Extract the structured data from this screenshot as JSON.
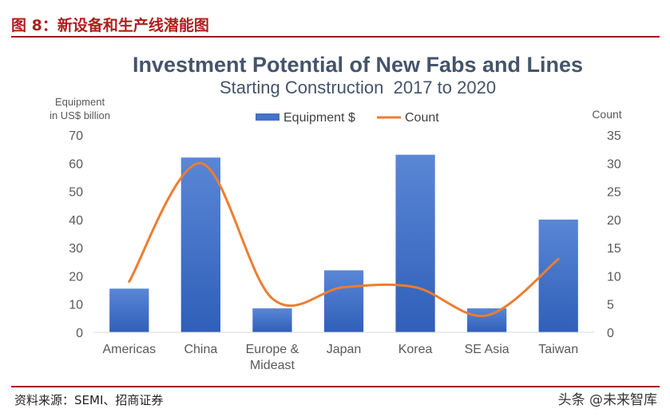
{
  "figure": {
    "caption": "图 8：新设备和生产线潜能图",
    "source": "资料来源：SEMI、招商证券",
    "watermark": "头条 @未来智库"
  },
  "chart_data": {
    "type": "bar",
    "title": "Investment Potential of New Fabs and Lines",
    "subtitle": "Starting Construction  2017 to 2020",
    "categories": [
      "Americas",
      "China",
      "Europe & Mideast",
      "Japan",
      "Korea",
      "SE Asia",
      "Taiwan"
    ],
    "category_labels": [
      [
        "Americas"
      ],
      [
        "China"
      ],
      [
        "Europe &",
        "Mideast"
      ],
      [
        "Japan"
      ],
      [
        "Korea"
      ],
      [
        "SE Asia"
      ],
      [
        "Taiwan"
      ]
    ],
    "ylabel_left": [
      "Equipment",
      "in US$ billion"
    ],
    "ylabel_right": "Count",
    "ylim_left": [
      0,
      70
    ],
    "yticks_left": [
      0,
      10,
      20,
      30,
      40,
      50,
      60,
      70
    ],
    "ylim_right": [
      0,
      35
    ],
    "yticks_right": [
      0,
      5,
      10,
      15,
      20,
      25,
      30,
      35
    ],
    "legend_position": "top",
    "grid": false,
    "series": [
      {
        "name": "Equipment $",
        "type": "bar",
        "axis": "left",
        "color": "#4472c4",
        "values": [
          15.5,
          62,
          8.5,
          22,
          63,
          8.5,
          40
        ]
      },
      {
        "name": "Count",
        "type": "line",
        "axis": "right",
        "smooth": true,
        "color": "#ed7d31",
        "values": [
          9,
          30,
          6,
          8,
          8,
          3,
          13
        ]
      }
    ]
  }
}
